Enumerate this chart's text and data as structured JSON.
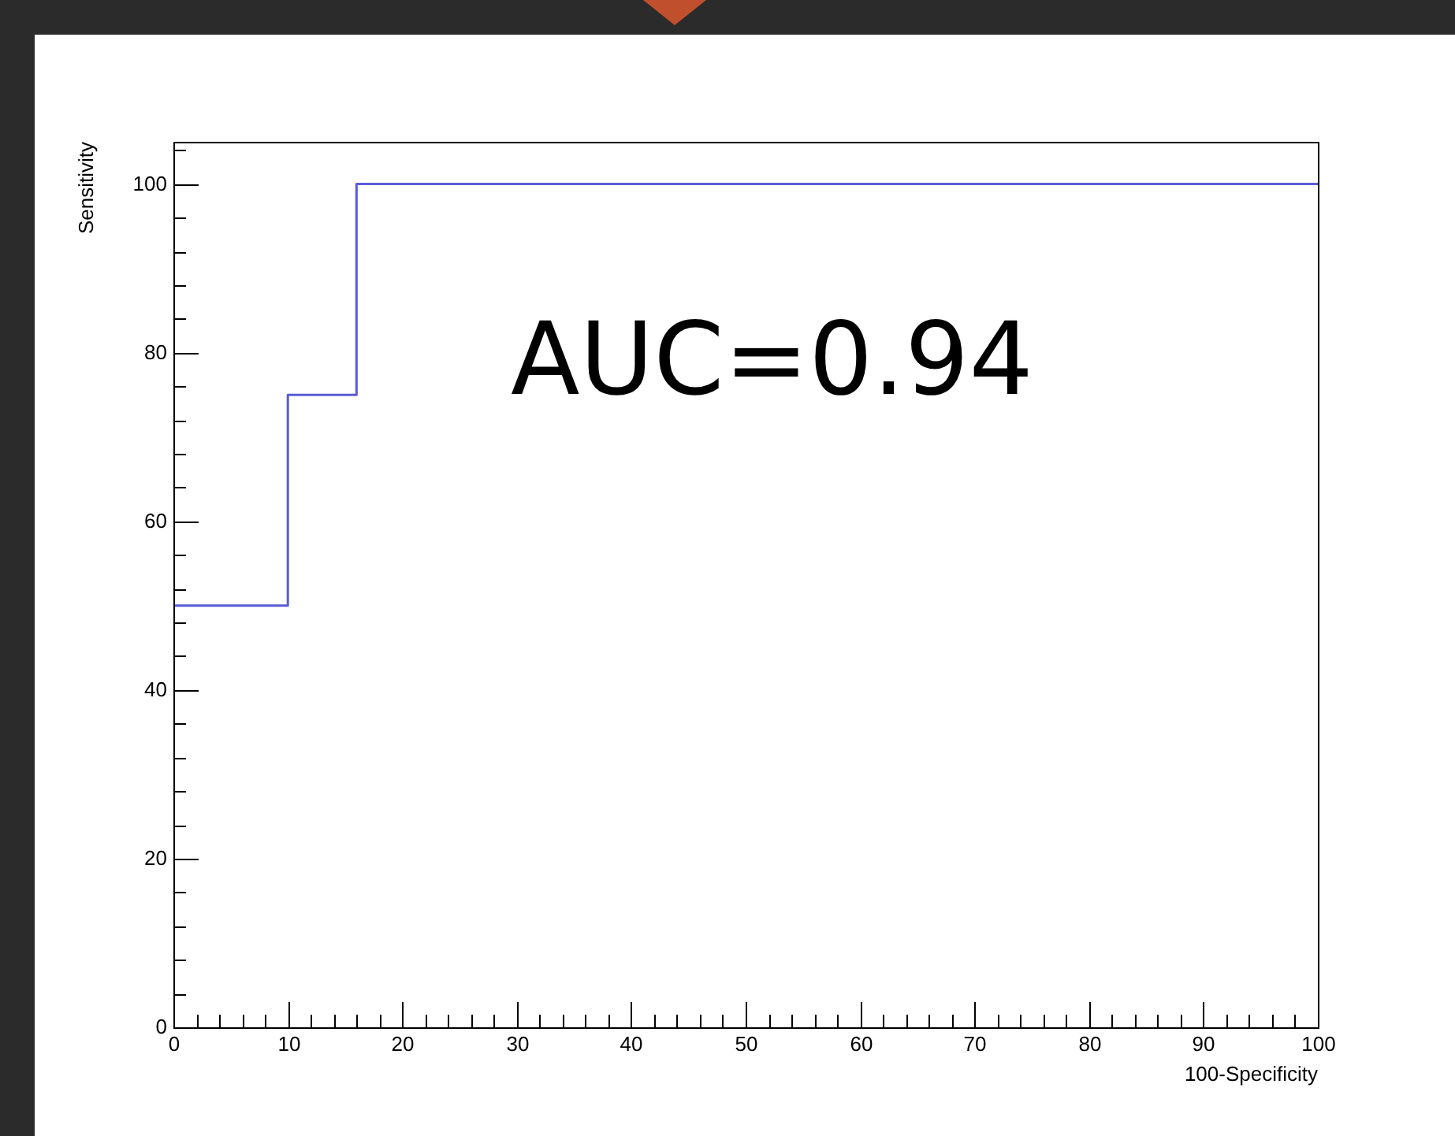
{
  "chart_data": {
    "type": "step",
    "xlabel": "100-Specificity",
    "ylabel": "Sensitivity",
    "x": [
      0,
      10,
      16,
      100
    ],
    "series": [
      {
        "color": "#5b5bd6",
        "values": [
          50,
          75,
          100,
          100
        ]
      }
    ],
    "xlim": [
      0,
      100
    ],
    "ylim": [
      0,
      105
    ],
    "xticks": [
      0,
      {
        "value": 2,
        "label": null
      },
      {
        "value": 4,
        "label": null
      },
      {
        "value": 6,
        "label": null
      },
      {
        "value": 8,
        "label": null
      },
      10,
      {
        "value": 12,
        "label": null
      },
      {
        "value": 14,
        "label": null
      },
      {
        "value": 16,
        "label": null
      },
      {
        "value": 18,
        "label": null
      },
      20,
      {
        "value": 22,
        "label": null
      },
      {
        "value": 24,
        "label": null
      },
      {
        "value": 26,
        "label": null
      },
      {
        "value": 28,
        "label": null
      },
      30,
      {
        "value": 32,
        "label": null
      },
      {
        "value": 34,
        "label": null
      },
      {
        "value": 36,
        "label": null
      },
      {
        "value": 38,
        "label": null
      },
      40,
      {
        "value": 42,
        "label": null
      },
      {
        "value": 44,
        "label": null
      },
      {
        "value": 46,
        "label": null
      },
      {
        "value": 48,
        "label": null
      },
      50,
      {
        "value": 52,
        "label": null
      },
      {
        "value": 54,
        "label": null
      },
      {
        "value": 56,
        "label": null
      },
      {
        "value": 58,
        "label": null
      },
      60,
      {
        "value": 62,
        "label": null
      },
      {
        "value": 64,
        "label": null
      },
      {
        "value": 66,
        "label": null
      },
      {
        "value": 68,
        "label": null
      },
      70,
      {
        "value": 72,
        "label": null
      },
      {
        "value": 74,
        "label": null
      },
      {
        "value": 76,
        "label": null
      },
      {
        "value": 78,
        "label": null
      },
      80,
      {
        "value": 82,
        "label": null
      },
      {
        "value": 84,
        "label": null
      },
      {
        "value": 86,
        "label": null
      },
      {
        "value": 88,
        "label": null
      },
      90,
      {
        "value": 92,
        "label": null
      },
      {
        "value": 94,
        "label": null
      },
      {
        "value": 96,
        "label": null
      },
      {
        "value": 98,
        "label": null
      },
      100
    ],
    "yticks": [
      0,
      {
        "value": 4,
        "label": null
      },
      {
        "value": 8,
        "label": null
      },
      {
        "value": 12,
        "label": null
      },
      {
        "value": 16,
        "label": null
      },
      20,
      {
        "value": 24,
        "label": null
      },
      {
        "value": 28,
        "label": null
      },
      {
        "value": 32,
        "label": null
      },
      {
        "value": 36,
        "label": null
      },
      40,
      {
        "value": 44,
        "label": null
      },
      {
        "value": 48,
        "label": null
      },
      {
        "value": 52,
        "label": null
      },
      {
        "value": 56,
        "label": null
      },
      60,
      {
        "value": 64,
        "label": null
      },
      {
        "value": 68,
        "label": null
      },
      {
        "value": 72,
        "label": null
      },
      {
        "value": 76,
        "label": null
      },
      80,
      {
        "value": 84,
        "label": null
      },
      {
        "value": 88,
        "label": null
      },
      {
        "value": 92,
        "label": null
      },
      {
        "value": 96,
        "label": null
      },
      100,
      {
        "value": 104,
        "label": null
      }
    ],
    "annotations": [
      "AUC=0.94"
    ],
    "grid": false,
    "legend": false,
    "marker": "none",
    "line_style": "solid"
  }
}
